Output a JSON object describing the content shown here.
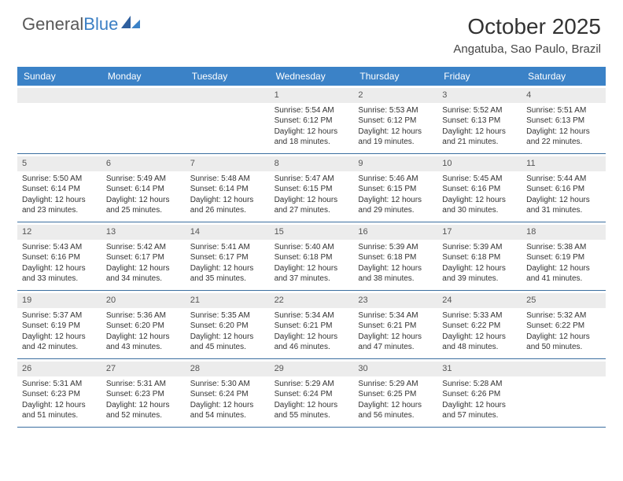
{
  "logo": {
    "text1": "General",
    "text2": "Blue"
  },
  "title": "October 2025",
  "location": "Angatuba, Sao Paulo, Brazil",
  "colors": {
    "header_bg": "#3b82c7",
    "header_text": "#ffffff",
    "daynum_bg": "#ececec",
    "border": "#3b6fa0",
    "logo_gray": "#595959",
    "logo_blue": "#3b7fc4"
  },
  "day_names": [
    "Sunday",
    "Monday",
    "Tuesday",
    "Wednesday",
    "Thursday",
    "Friday",
    "Saturday"
  ],
  "weeks": [
    [
      {
        "n": "",
        "sr": "",
        "ss": "",
        "dl": ""
      },
      {
        "n": "",
        "sr": "",
        "ss": "",
        "dl": ""
      },
      {
        "n": "",
        "sr": "",
        "ss": "",
        "dl": ""
      },
      {
        "n": "1",
        "sr": "Sunrise: 5:54 AM",
        "ss": "Sunset: 6:12 PM",
        "dl": "Daylight: 12 hours and 18 minutes."
      },
      {
        "n": "2",
        "sr": "Sunrise: 5:53 AM",
        "ss": "Sunset: 6:12 PM",
        "dl": "Daylight: 12 hours and 19 minutes."
      },
      {
        "n": "3",
        "sr": "Sunrise: 5:52 AM",
        "ss": "Sunset: 6:13 PM",
        "dl": "Daylight: 12 hours and 21 minutes."
      },
      {
        "n": "4",
        "sr": "Sunrise: 5:51 AM",
        "ss": "Sunset: 6:13 PM",
        "dl": "Daylight: 12 hours and 22 minutes."
      }
    ],
    [
      {
        "n": "5",
        "sr": "Sunrise: 5:50 AM",
        "ss": "Sunset: 6:14 PM",
        "dl": "Daylight: 12 hours and 23 minutes."
      },
      {
        "n": "6",
        "sr": "Sunrise: 5:49 AM",
        "ss": "Sunset: 6:14 PM",
        "dl": "Daylight: 12 hours and 25 minutes."
      },
      {
        "n": "7",
        "sr": "Sunrise: 5:48 AM",
        "ss": "Sunset: 6:14 PM",
        "dl": "Daylight: 12 hours and 26 minutes."
      },
      {
        "n": "8",
        "sr": "Sunrise: 5:47 AM",
        "ss": "Sunset: 6:15 PM",
        "dl": "Daylight: 12 hours and 27 minutes."
      },
      {
        "n": "9",
        "sr": "Sunrise: 5:46 AM",
        "ss": "Sunset: 6:15 PM",
        "dl": "Daylight: 12 hours and 29 minutes."
      },
      {
        "n": "10",
        "sr": "Sunrise: 5:45 AM",
        "ss": "Sunset: 6:16 PM",
        "dl": "Daylight: 12 hours and 30 minutes."
      },
      {
        "n": "11",
        "sr": "Sunrise: 5:44 AM",
        "ss": "Sunset: 6:16 PM",
        "dl": "Daylight: 12 hours and 31 minutes."
      }
    ],
    [
      {
        "n": "12",
        "sr": "Sunrise: 5:43 AM",
        "ss": "Sunset: 6:16 PM",
        "dl": "Daylight: 12 hours and 33 minutes."
      },
      {
        "n": "13",
        "sr": "Sunrise: 5:42 AM",
        "ss": "Sunset: 6:17 PM",
        "dl": "Daylight: 12 hours and 34 minutes."
      },
      {
        "n": "14",
        "sr": "Sunrise: 5:41 AM",
        "ss": "Sunset: 6:17 PM",
        "dl": "Daylight: 12 hours and 35 minutes."
      },
      {
        "n": "15",
        "sr": "Sunrise: 5:40 AM",
        "ss": "Sunset: 6:18 PM",
        "dl": "Daylight: 12 hours and 37 minutes."
      },
      {
        "n": "16",
        "sr": "Sunrise: 5:39 AM",
        "ss": "Sunset: 6:18 PM",
        "dl": "Daylight: 12 hours and 38 minutes."
      },
      {
        "n": "17",
        "sr": "Sunrise: 5:39 AM",
        "ss": "Sunset: 6:18 PM",
        "dl": "Daylight: 12 hours and 39 minutes."
      },
      {
        "n": "18",
        "sr": "Sunrise: 5:38 AM",
        "ss": "Sunset: 6:19 PM",
        "dl": "Daylight: 12 hours and 41 minutes."
      }
    ],
    [
      {
        "n": "19",
        "sr": "Sunrise: 5:37 AM",
        "ss": "Sunset: 6:19 PM",
        "dl": "Daylight: 12 hours and 42 minutes."
      },
      {
        "n": "20",
        "sr": "Sunrise: 5:36 AM",
        "ss": "Sunset: 6:20 PM",
        "dl": "Daylight: 12 hours and 43 minutes."
      },
      {
        "n": "21",
        "sr": "Sunrise: 5:35 AM",
        "ss": "Sunset: 6:20 PM",
        "dl": "Daylight: 12 hours and 45 minutes."
      },
      {
        "n": "22",
        "sr": "Sunrise: 5:34 AM",
        "ss": "Sunset: 6:21 PM",
        "dl": "Daylight: 12 hours and 46 minutes."
      },
      {
        "n": "23",
        "sr": "Sunrise: 5:34 AM",
        "ss": "Sunset: 6:21 PM",
        "dl": "Daylight: 12 hours and 47 minutes."
      },
      {
        "n": "24",
        "sr": "Sunrise: 5:33 AM",
        "ss": "Sunset: 6:22 PM",
        "dl": "Daylight: 12 hours and 48 minutes."
      },
      {
        "n": "25",
        "sr": "Sunrise: 5:32 AM",
        "ss": "Sunset: 6:22 PM",
        "dl": "Daylight: 12 hours and 50 minutes."
      }
    ],
    [
      {
        "n": "26",
        "sr": "Sunrise: 5:31 AM",
        "ss": "Sunset: 6:23 PM",
        "dl": "Daylight: 12 hours and 51 minutes."
      },
      {
        "n": "27",
        "sr": "Sunrise: 5:31 AM",
        "ss": "Sunset: 6:23 PM",
        "dl": "Daylight: 12 hours and 52 minutes."
      },
      {
        "n": "28",
        "sr": "Sunrise: 5:30 AM",
        "ss": "Sunset: 6:24 PM",
        "dl": "Daylight: 12 hours and 54 minutes."
      },
      {
        "n": "29",
        "sr": "Sunrise: 5:29 AM",
        "ss": "Sunset: 6:24 PM",
        "dl": "Daylight: 12 hours and 55 minutes."
      },
      {
        "n": "30",
        "sr": "Sunrise: 5:29 AM",
        "ss": "Sunset: 6:25 PM",
        "dl": "Daylight: 12 hours and 56 minutes."
      },
      {
        "n": "31",
        "sr": "Sunrise: 5:28 AM",
        "ss": "Sunset: 6:26 PM",
        "dl": "Daylight: 12 hours and 57 minutes."
      },
      {
        "n": "",
        "sr": "",
        "ss": "",
        "dl": ""
      }
    ]
  ]
}
